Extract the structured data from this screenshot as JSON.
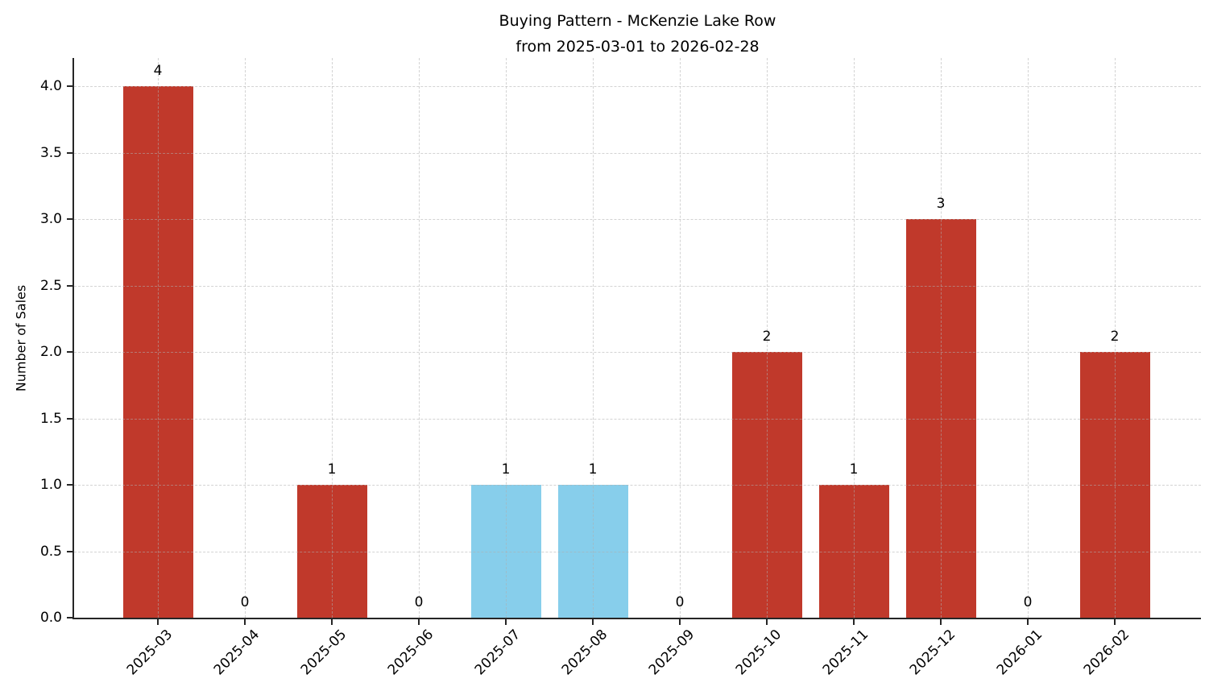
{
  "chart_data": {
    "type": "bar",
    "title": "Buying Pattern - McKenzie Lake Row",
    "subtitle": "from 2025-03-01 to 2026-02-28",
    "ylabel": "Number of Sales",
    "xlabel": "",
    "categories": [
      "2025-03",
      "2025-04",
      "2025-05",
      "2025-06",
      "2025-07",
      "2025-08",
      "2025-09",
      "2025-10",
      "2025-11",
      "2025-12",
      "2026-01",
      "2026-02"
    ],
    "values": [
      4,
      0,
      1,
      0,
      1,
      1,
      0,
      2,
      1,
      3,
      0,
      2
    ],
    "bar_labels": [
      "4",
      "0",
      "1",
      "0",
      "1",
      "1",
      "0",
      "2",
      "1",
      "3",
      "0",
      "2"
    ],
    "bar_color_keys": [
      "default",
      "default",
      "default",
      "default",
      "highlight",
      "highlight",
      "default",
      "default",
      "default",
      "default",
      "default",
      "default"
    ],
    "colors": {
      "default": "#c0392b",
      "highlight": "#87ceeb",
      "grid": "#afafaf",
      "axis": "#262626",
      "text": "#000000"
    },
    "ytick_labels": [
      "0.0",
      "0.5",
      "1.0",
      "1.5",
      "2.0",
      "2.5",
      "3.0",
      "3.5",
      "4.0"
    ],
    "ytick_values": [
      0,
      0.5,
      1,
      1.5,
      2,
      2.5,
      3,
      3.5,
      4
    ],
    "ylim": [
      0,
      4.21
    ],
    "grid": true,
    "grid_style": "dashed",
    "legend": false,
    "x_tick_rotation": 45
  }
}
